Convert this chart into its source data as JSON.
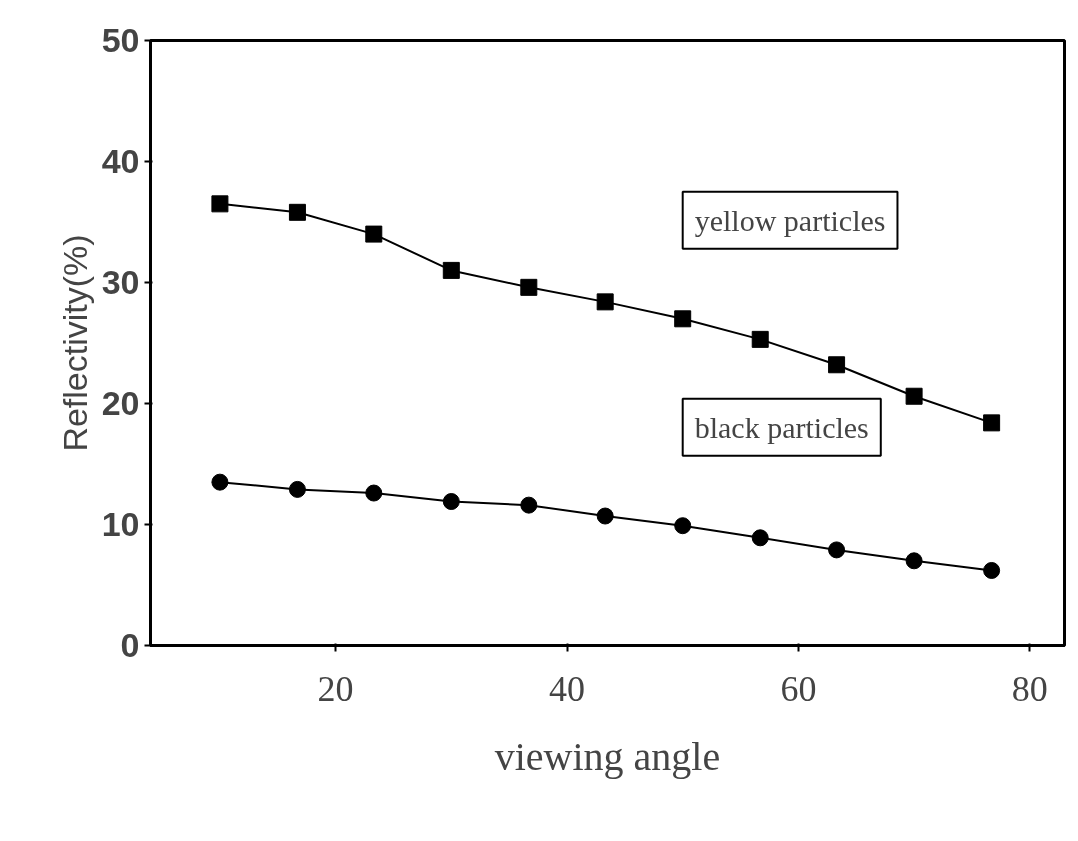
{
  "chart_data": {
    "type": "line",
    "xlabel": "viewing angle",
    "ylabel": "Reflectivity(%)",
    "x": [
      10,
      16.7,
      23.3,
      30,
      36.7,
      43.3,
      50,
      56.7,
      63.3,
      70,
      76.7
    ],
    "series": [
      {
        "name": "yellow particles",
        "color": "#000000",
        "marker": "square",
        "values": [
          36.5,
          35.8,
          34.0,
          31.0,
          29.6,
          28.4,
          27.0,
          25.3,
          23.2,
          20.6,
          18.4
        ]
      },
      {
        "name": "black particles",
        "color": "#000000",
        "marker": "circle",
        "values": [
          13.5,
          12.9,
          12.6,
          11.9,
          11.6,
          10.7,
          9.9,
          8.9,
          7.9,
          7.0,
          6.2
        ]
      }
    ],
    "xlim": [
      4,
      83
    ],
    "ylim": [
      0,
      50
    ],
    "xticks": [
      20,
      40,
      60,
      80
    ],
    "yticks": [
      0,
      10,
      20,
      30,
      40,
      50
    ],
    "grid": false,
    "line_style": "solid"
  }
}
